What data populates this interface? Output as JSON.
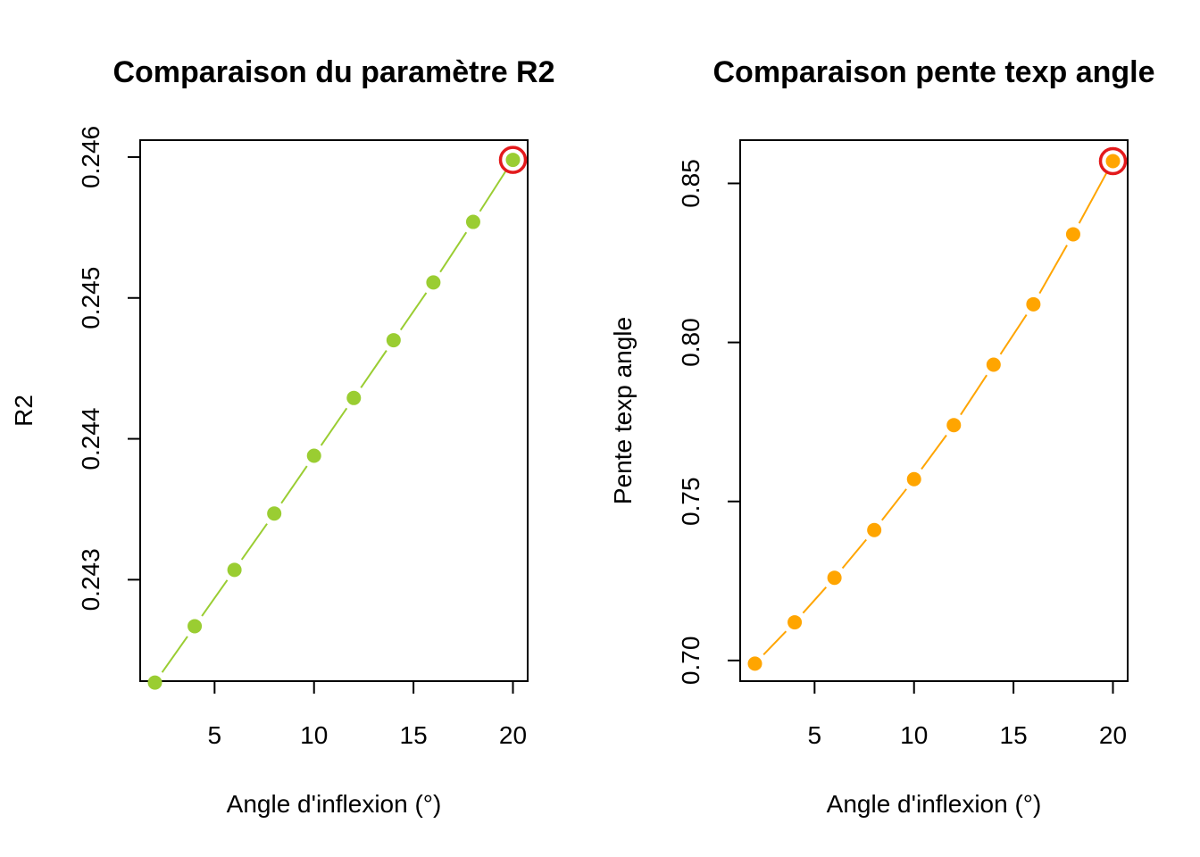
{
  "chart_data": [
    {
      "type": "line",
      "title": "Comparaison du paramètre R2",
      "xlabel": "Angle d'inflexion (°)",
      "ylabel": "R2",
      "xlim": [
        2,
        20
      ],
      "ylim": [
        0.24228,
        0.24612
      ],
      "x_ticks": [
        5,
        10,
        15,
        20
      ],
      "x_tick_labels": [
        "5",
        "10",
        "15",
        "20"
      ],
      "y_ticks": [
        0.243,
        0.244,
        0.245,
        0.246
      ],
      "y_tick_labels": [
        "0.243",
        "0.244",
        "0.245",
        "0.246"
      ],
      "line_style": "dashed",
      "color": "#9ACD32",
      "highlight_color": "#E31A1C",
      "grid": false,
      "series": [
        {
          "x": [
            2,
            4,
            6,
            8,
            10,
            12,
            14,
            16,
            18,
            20
          ],
          "values": [
            0.24227,
            0.24267,
            0.24307,
            0.24347,
            0.24388,
            0.24429,
            0.2447,
            0.24511,
            0.24554,
            0.24598
          ]
        }
      ],
      "highlight": {
        "x": 20,
        "y": 0.24598
      }
    },
    {
      "type": "line",
      "title": "Comparaison pente texp angle",
      "xlabel": "Angle d'inflexion (°)",
      "ylabel": "Pente texp angle",
      "xlim": [
        2,
        20
      ],
      "ylim": [
        0.6935,
        0.8636
      ],
      "x_ticks": [
        5,
        10,
        15,
        20
      ],
      "x_tick_labels": [
        "5",
        "10",
        "15",
        "20"
      ],
      "y_ticks": [
        0.7,
        0.75,
        0.8,
        0.85
      ],
      "y_tick_labels": [
        "0.70",
        "0.75",
        "0.80",
        "0.85"
      ],
      "line_style": "dashed",
      "color": "#FFA500",
      "highlight_color": "#E31A1C",
      "grid": false,
      "series": [
        {
          "x": [
            2,
            4,
            6,
            8,
            10,
            12,
            14,
            16,
            18,
            20
          ],
          "values": [
            0.699,
            0.712,
            0.726,
            0.741,
            0.757,
            0.774,
            0.793,
            0.812,
            0.834,
            0.857
          ]
        }
      ],
      "highlight": {
        "x": 20,
        "y": 0.857
      }
    }
  ]
}
